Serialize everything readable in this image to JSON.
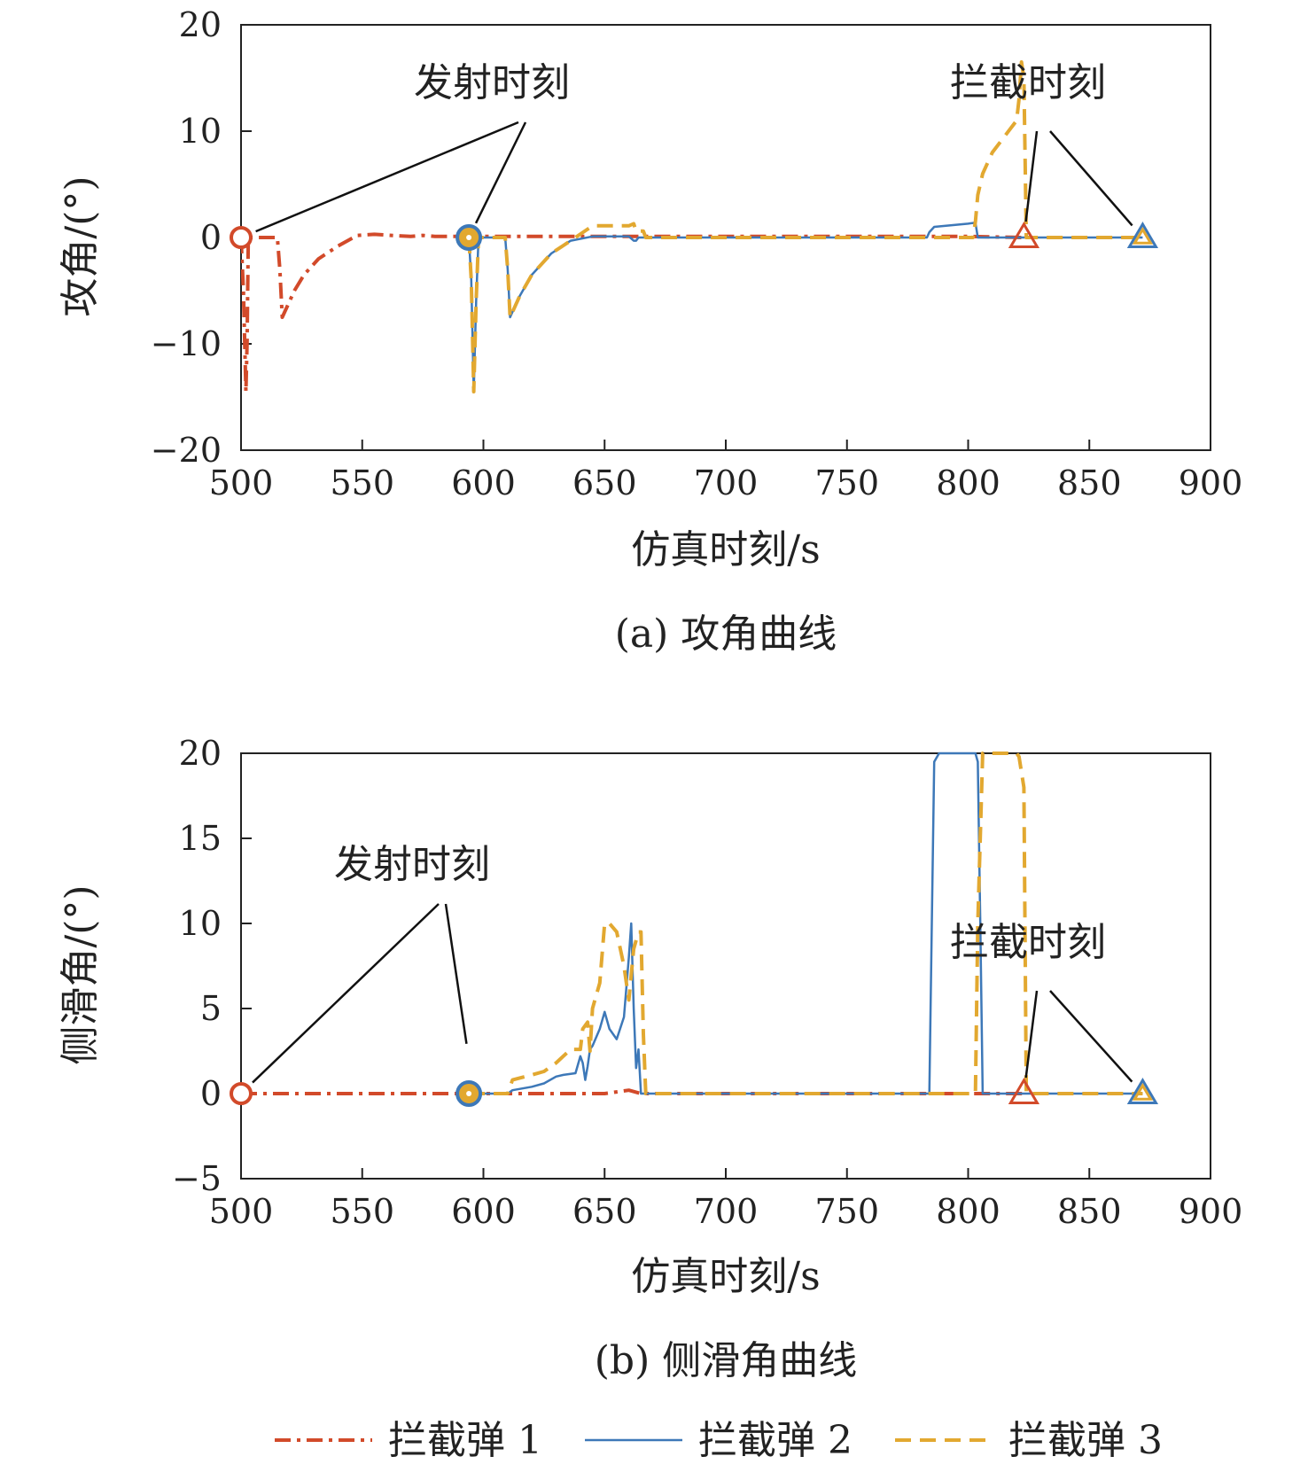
{
  "colors": {
    "s1": "#d24a2a",
    "s2": "#3d78b8",
    "s3": "#e2a830",
    "axis": "#222222"
  },
  "legend": [
    {
      "name": "拦截弹 1",
      "style": "dashdot",
      "color": "#d24a2a"
    },
    {
      "name": "拦截弹 2",
      "style": "solid",
      "color": "#3d78b8"
    },
    {
      "name": "拦截弹 3",
      "style": "dashed",
      "color": "#e2a830"
    }
  ],
  "chart_data": [
    {
      "type": "line",
      "caption": "(a) 攻角曲线",
      "xlabel": "仿真时刻/s",
      "ylabel": "攻角/(°)",
      "xlim": [
        500,
        900
      ],
      "ylim": [
        -20,
        20
      ],
      "xticks": [
        500,
        550,
        600,
        650,
        700,
        750,
        800,
        850,
        900
      ],
      "yticks": [
        -20,
        -10,
        0,
        10,
        20
      ],
      "ytick_labels": [
        "−20",
        "−10",
        "0",
        "10",
        "20"
      ],
      "annotations": [
        {
          "text": "发射时刻",
          "points": [
            [
              500,
              0
            ],
            [
              594,
              0
            ]
          ]
        },
        {
          "text": "拦截时刻",
          "points": [
            [
              823,
              0
            ],
            [
              872,
              0
            ]
          ]
        }
      ],
      "markers": [
        {
          "series": "拦截弹 1",
          "shape": "circle",
          "x": 500,
          "y": 0
        },
        {
          "series": "拦截弹 2",
          "shape": "circle",
          "x": 594,
          "y": 0
        },
        {
          "series": "拦截弹 1",
          "shape": "triangle",
          "x": 823,
          "y": 0
        },
        {
          "series": "拦截弹 2",
          "shape": "triangle",
          "x": 872,
          "y": 0
        }
      ],
      "series": [
        {
          "name": "拦截弹 1",
          "x": [
            500,
            501,
            502,
            502.5,
            503,
            504,
            505,
            515,
            516,
            517,
            519,
            522,
            526,
            532,
            540,
            548,
            555,
            562,
            570,
            575,
            580,
            590,
            600,
            650,
            700,
            750,
            800,
            823
          ],
          "y": [
            0,
            -5,
            -14.5,
            -10,
            0,
            0,
            0,
            0,
            -3,
            -7.5,
            -6.5,
            -5,
            -3.5,
            -2,
            -0.8,
            0.2,
            0.3,
            0.2,
            0.1,
            0.2,
            0.1,
            0.1,
            0.1,
            0.1,
            0.1,
            0.1,
            0.1,
            0
          ]
        },
        {
          "name": "拦截弹 2",
          "x": [
            594,
            595,
            596,
            597,
            598,
            609,
            610,
            611,
            615,
            620,
            628,
            636,
            645,
            660,
            662,
            663,
            664,
            670,
            700,
            750,
            783,
            784,
            786,
            800,
            803,
            804,
            806,
            850,
            872
          ],
          "y": [
            0,
            -4,
            -14.5,
            -6,
            0,
            0,
            -3,
            -7.5,
            -5.5,
            -3.5,
            -1.5,
            -0.3,
            0.1,
            0.1,
            -0.3,
            -0.3,
            0,
            0,
            0,
            0,
            0,
            0.5,
            1.0,
            1.3,
            1.4,
            0,
            0,
            0,
            0
          ]
        },
        {
          "name": "拦截弹 3",
          "x": [
            594,
            595,
            596,
            597,
            598,
            609,
            610,
            611,
            615,
            620,
            628,
            636,
            645,
            660,
            662,
            663,
            666,
            667,
            700,
            750,
            800,
            802,
            803,
            804,
            806,
            810,
            815,
            820,
            821,
            822,
            823,
            824,
            850,
            872
          ],
          "y": [
            0,
            -4,
            -14.5,
            -6,
            0,
            0,
            -3,
            -7.5,
            -5.5,
            -3.5,
            -1.5,
            -0.3,
            1.1,
            1.1,
            1.3,
            0.6,
            0.6,
            0,
            0,
            0,
            0,
            0,
            1.5,
            4.0,
            6.0,
            8.0,
            9.5,
            11.0,
            13,
            16.5,
            15,
            0,
            0,
            0
          ]
        }
      ]
    },
    {
      "type": "line",
      "caption": "(b) 侧滑角曲线",
      "xlabel": "仿真时刻/s",
      "ylabel": "侧滑角/(°)",
      "xlim": [
        500,
        900
      ],
      "ylim": [
        -5,
        20
      ],
      "xticks": [
        500,
        550,
        600,
        650,
        700,
        750,
        800,
        850,
        900
      ],
      "yticks": [
        -5,
        0,
        5,
        10,
        15,
        20
      ],
      "ytick_labels": [
        "−5",
        "0",
        "5",
        "10",
        "15",
        "20"
      ],
      "annotations": [
        {
          "text": "发射时刻",
          "points": [
            [
              500,
              0
            ],
            [
              594,
              2
            ]
          ]
        },
        {
          "text": "拦截时刻",
          "points": [
            [
              823,
              0
            ],
            [
              872,
              0
            ]
          ]
        }
      ],
      "markers": [
        {
          "series": "拦截弹 1",
          "shape": "circle",
          "x": 500,
          "y": 0
        },
        {
          "series": "拦截弹 2",
          "shape": "circle",
          "x": 594,
          "y": 0
        },
        {
          "series": "拦截弹 1",
          "shape": "triangle",
          "x": 823,
          "y": 0
        },
        {
          "series": "拦截弹 2",
          "shape": "triangle",
          "x": 872,
          "y": 0
        }
      ],
      "series": [
        {
          "name": "拦截弹 1",
          "x": [
            500,
            600,
            650,
            660,
            665,
            700,
            750,
            800,
            823
          ],
          "y": [
            0,
            0,
            0,
            0.2,
            0,
            0,
            0,
            0,
            0
          ]
        },
        {
          "name": "拦截弹 2",
          "x": [
            594,
            610,
            612,
            620,
            625,
            630,
            633,
            638,
            640,
            641,
            642,
            643,
            644,
            645,
            648,
            650,
            652,
            655,
            658,
            660,
            661,
            662,
            663,
            664,
            665,
            666,
            670,
            700,
            784,
            785,
            786,
            788,
            803,
            804,
            805,
            806,
            850,
            872
          ],
          "y": [
            0,
            0,
            0.2,
            0.4,
            0.6,
            1.0,
            1.1,
            1.2,
            2.2,
            1.8,
            0.8,
            1.6,
            2.6,
            2.8,
            3.8,
            4.8,
            3.8,
            3.2,
            4.5,
            8.0,
            10.0,
            5.0,
            1.5,
            2.6,
            0,
            0,
            0,
            0,
            0,
            10,
            19.5,
            20,
            20,
            19.5,
            10,
            0,
            0,
            0
          ]
        },
        {
          "name": "拦截弹 3",
          "x": [
            594,
            610,
            612,
            620,
            625,
            630,
            636,
            640,
            641,
            643,
            644,
            645,
            648,
            650,
            652,
            655,
            658,
            660,
            662,
            664,
            665,
            666,
            667,
            670,
            700,
            803,
            804,
            806,
            820,
            821,
            823,
            824,
            850,
            872
          ],
          "y": [
            0,
            0,
            0.8,
            1.1,
            1.3,
            1.8,
            2.6,
            2.6,
            3.8,
            4.2,
            2.5,
            5.0,
            6.5,
            10.0,
            10.0,
            9.5,
            7.5,
            5.5,
            8.5,
            9.5,
            9.5,
            3.5,
            0,
            0,
            0,
            0,
            10,
            20,
            20,
            19.8,
            18,
            0,
            0,
            0
          ]
        }
      ]
    }
  ]
}
